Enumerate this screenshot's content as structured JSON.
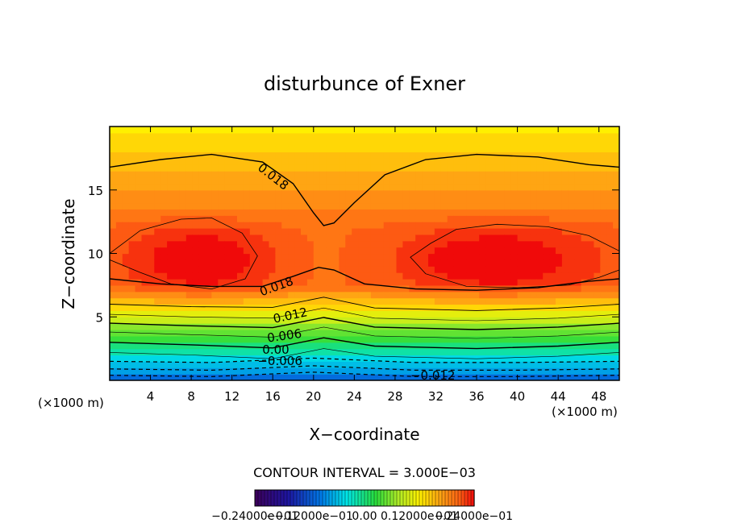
{
  "chart_data": {
    "type": "heatmap",
    "title": "disturbunce of Exner",
    "xlabel": "X−coordinate",
    "ylabel": "Z−coordinate",
    "x_unit_left": "(×1000 m)",
    "x_unit_right": "(×1000 m)",
    "xlim": [
      0,
      50
    ],
    "ylim": [
      0,
      20
    ],
    "x_ticks": [
      4,
      8,
      12,
      16,
      20,
      24,
      28,
      32,
      36,
      40,
      44,
      48
    ],
    "y_ticks": [
      5,
      10,
      15
    ],
    "contour_interval_label": "CONTOUR INTERVAL = 3.000E−03",
    "colorbar_labels": [
      "−0.24000e−01",
      "−0.12000e−01",
      "0.00",
      "0.12000e−01",
      "0.24000e−01"
    ],
    "colorbar_range": [
      -0.024,
      0.024
    ],
    "contour_labels": [
      {
        "text": "0.018",
        "x": 15.8,
        "z": 15.8,
        "angle": 38
      },
      {
        "text": "0.018",
        "x": 16.5,
        "z": 7.1,
        "angle": -20
      },
      {
        "text": "0.012",
        "x": 17.8,
        "z": 4.8,
        "angle": -12
      },
      {
        "text": "0.006",
        "x": 17.2,
        "z": 3.2,
        "angle": -8
      },
      {
        "text": "0.00",
        "x": 16.3,
        "z": 2.1,
        "angle": 0
      },
      {
        "text": "−0.006",
        "x": 16.7,
        "z": 1.2,
        "angle": 0
      },
      {
        "text": "−0.012",
        "x": 31.7,
        "z": 0.05,
        "angle": 0
      }
    ]
  }
}
